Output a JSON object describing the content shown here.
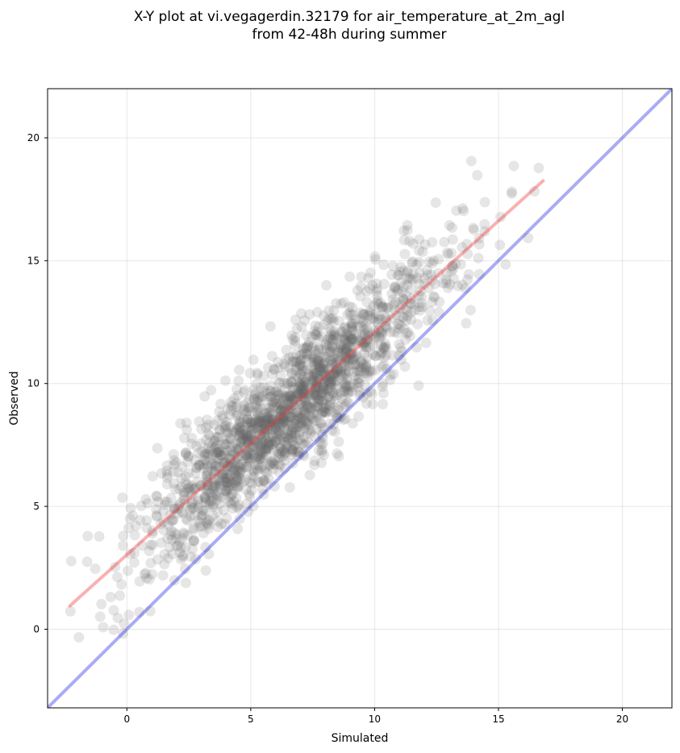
{
  "chart_data": {
    "type": "scatter",
    "title": "X-Y plot at vi.vegagerdin.32179 for air_temperature_at_2m_agl",
    "subtitle": "from 42-48h during summer",
    "xlabel": "Simulated",
    "ylabel": "Observed",
    "xlim": [
      -3.2,
      22
    ],
    "ylim": [
      -3.2,
      22
    ],
    "xticks": [
      0,
      5,
      10,
      15,
      20
    ],
    "yticks": [
      0,
      5,
      10,
      15,
      20
    ],
    "grid": true,
    "reference_line": {
      "from": [
        -3.2,
        -3.2
      ],
      "to": [
        22,
        22
      ],
      "color": "#0000dd"
    },
    "fit_line": {
      "from": [
        -2.3,
        0.95
      ],
      "to": [
        16.8,
        18.25
      ],
      "color": "#ee3333"
    },
    "point_color": "#666666",
    "point_count": 1800
  }
}
